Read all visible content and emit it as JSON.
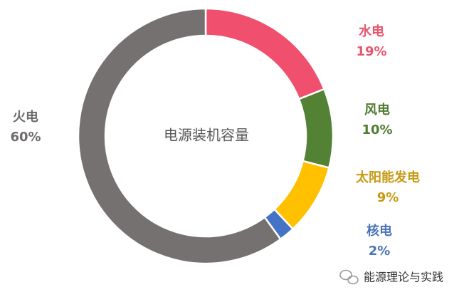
{
  "chart_data": {
    "type": "donut",
    "title": "电源装机容量",
    "categories": [
      "水电",
      "风电",
      "太阳能发电",
      "核电",
      "火电"
    ],
    "values": [
      19,
      10,
      9,
      2,
      60
    ],
    "value_labels": [
      "19%",
      "10%",
      "9%",
      "2%",
      "60%"
    ],
    "colors": [
      "#f0506e",
      "#548235",
      "#ffc000",
      "#4472c4",
      "#767171"
    ],
    "label_colors": [
      "#e8556f",
      "#4f7c31",
      "#c79a12",
      "#4a74b8",
      "#6f6b6b"
    ]
  },
  "watermark": "能源理论与实践"
}
